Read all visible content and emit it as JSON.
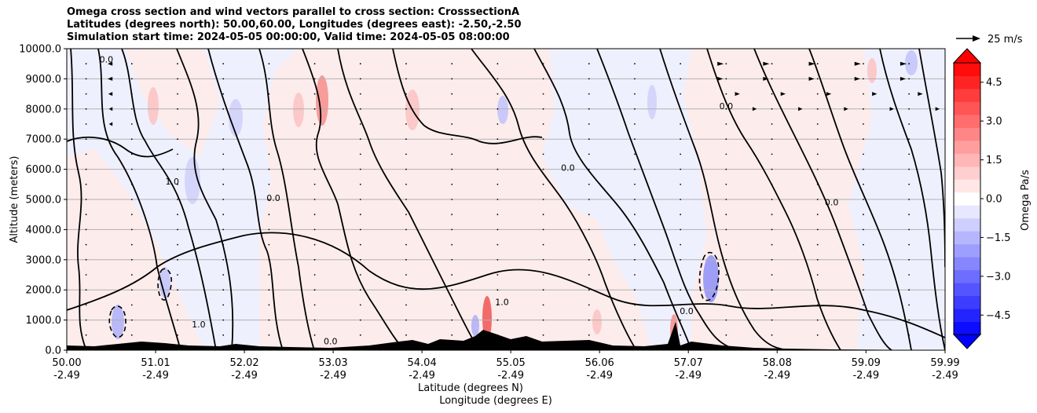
{
  "chart_data": {
    "type": "heatmap",
    "title_lines": [
      "Omega cross section and wind vectors parallel to cross section: CrosssectionA",
      "Latitudes (degrees north): 50.00,60.00, Longitudes (degrees east): -2.50,-2.50",
      "Simulation start time: 2024-05-05 00:00:00, Valid time: 2024-05-05 08:00:00"
    ],
    "ylabel": "Altitude (meters)",
    "xlabel_lines": [
      "Latitude (degrees N)",
      "Longitude (degrees E)"
    ],
    "ylim": [
      0,
      10000
    ],
    "y_ticks": [
      0,
      1000,
      2000,
      3000,
      4000,
      5000,
      6000,
      7000,
      8000,
      9000,
      10000
    ],
    "y_tick_labels": [
      "0.0",
      "1000.0",
      "2000.0",
      "3000.0",
      "4000.0",
      "5000.0",
      "6000.0",
      "7000.0",
      "8000.0",
      "9000.0",
      "10000.0"
    ],
    "xlim": [
      50.0,
      59.99
    ],
    "x_ticks": [
      50.0,
      51.01,
      52.02,
      53.03,
      54.04,
      55.05,
      56.06,
      57.07,
      58.08,
      59.09,
      59.99
    ],
    "x_tick_labels_lat": [
      "50.00",
      "51.01",
      "52.02",
      "53.03",
      "54.04",
      "55.05",
      "56.06",
      "57.07",
      "58.08",
      "59.09",
      "59.99"
    ],
    "x_tick_labels_lon": [
      "-2.49",
      "-2.49",
      "-2.49",
      "-2.49",
      "-2.49",
      "-2.49",
      "-2.49",
      "-2.49",
      "-2.49",
      "-2.49",
      "-2.49"
    ],
    "grid": "horizontal",
    "colorbar": {
      "label": "Omega Pa/s",
      "range": [
        -5.25,
        5.25
      ],
      "tick_values": [
        4.5,
        3.0,
        1.5,
        0.0,
        -1.5,
        -3.0,
        -4.5
      ],
      "tick_labels": [
        "4.5",
        "3.0",
        "1.5",
        "0.0",
        "−1.5",
        "−3.0",
        "−4.5"
      ],
      "level_count": 21,
      "extend": "both",
      "negative_color": "#0000ff",
      "positive_color": "#ff0000",
      "neutral_color": "#ffffff"
    },
    "quiver_key": {
      "label": "25 m/s",
      "speed": 25
    },
    "contour_labels": [
      {
        "lat": 50.45,
        "alt": 9550,
        "text": "0.0"
      },
      {
        "lat": 51.2,
        "alt": 5500,
        "text": "1.0"
      },
      {
        "lat": 52.35,
        "alt": 4950,
        "text": "0.0"
      },
      {
        "lat": 51.5,
        "alt": 750,
        "text": "1.0"
      },
      {
        "lat": 53.0,
        "alt": 200,
        "text": "0.0"
      },
      {
        "lat": 55.7,
        "alt": 5950,
        "text": "0.0"
      },
      {
        "lat": 57.5,
        "alt": 8000,
        "text": "0.0"
      },
      {
        "lat": 58.7,
        "alt": 4800,
        "text": "0.0"
      },
      {
        "lat": 57.05,
        "alt": 1200,
        "text": "0.0"
      },
      {
        "lat": 54.95,
        "alt": 1500,
        "text": "1.0"
      }
    ],
    "quiver_rows": [
      {
        "alt": 9500,
        "lat_from": 57.4,
        "lat_to": 59.9,
        "u": 9
      },
      {
        "alt": 9000,
        "lat_from": 57.4,
        "lat_to": 59.9,
        "u": 8
      },
      {
        "alt": 8500,
        "lat_from": 57.6,
        "lat_to": 59.9,
        "u": 7
      },
      {
        "alt": 8000,
        "lat_from": 57.8,
        "lat_to": 59.9,
        "u": 6
      },
      {
        "alt": 9500,
        "lat_from": 50.0,
        "lat_to": 51.0,
        "u": -7
      },
      {
        "alt": 9000,
        "lat_from": 50.0,
        "lat_to": 51.0,
        "u": -7
      },
      {
        "alt": 8500,
        "lat_from": 50.0,
        "lat_to": 50.9,
        "u": -6
      },
      {
        "alt": 8000,
        "lat_from": 50.0,
        "lat_to": 50.8,
        "u": -5
      },
      {
        "alt": 7500,
        "lat_from": 50.0,
        "lat_to": 50.7,
        "u": -5
      }
    ]
  }
}
